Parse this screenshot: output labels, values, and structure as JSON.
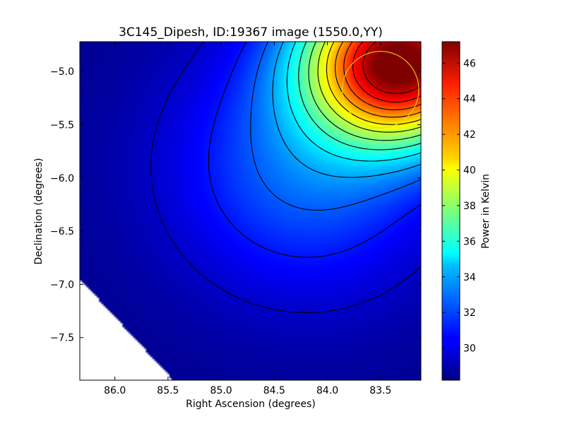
{
  "chart_data": {
    "type": "heatmap",
    "title": "3C145_Dipesh, ID:19367 image (1550.0,YY)",
    "xlabel": "Right Ascension (degrees)",
    "ylabel": "Declination (degrees)",
    "colorbar_label": "Power in Kelvin",
    "colormap": "jet",
    "xlim": [
      86.33,
      83.12
    ],
    "ylim": [
      -7.9,
      -4.72
    ],
    "x_ticks": [
      {
        "value": 86.0,
        "label": "86.0"
      },
      {
        "value": 85.5,
        "label": "85.5"
      },
      {
        "value": 85.0,
        "label": "85.0"
      },
      {
        "value": 84.5,
        "label": "84.5"
      },
      {
        "value": 84.0,
        "label": "84.0"
      },
      {
        "value": 83.5,
        "label": "83.5"
      }
    ],
    "y_ticks": [
      {
        "value": -5.0,
        "label": "−5.0"
      },
      {
        "value": -5.5,
        "label": "−5.5"
      },
      {
        "value": -6.0,
        "label": "−6.0"
      },
      {
        "value": -6.5,
        "label": "−6.5"
      },
      {
        "value": -7.0,
        "label": "−7.0"
      },
      {
        "value": -7.5,
        "label": "−7.5"
      }
    ],
    "color_range": [
      28.2,
      47.2
    ],
    "colorbar_ticks": [
      {
        "value": 30,
        "label": "30"
      },
      {
        "value": 32,
        "label": "32"
      },
      {
        "value": 34,
        "label": "34"
      },
      {
        "value": 36,
        "label": "36"
      },
      {
        "value": 38,
        "label": "38"
      },
      {
        "value": 40,
        "label": "40"
      },
      {
        "value": 42,
        "label": "42"
      },
      {
        "value": 44,
        "label": "44"
      },
      {
        "value": 46,
        "label": "46"
      }
    ],
    "peak": {
      "ra": 83.3,
      "dec": -4.9,
      "value": 47.0
    },
    "marker_circle": {
      "ra": 83.5,
      "dec": -5.17,
      "radius_deg": 0.36,
      "color": "#e8e800"
    },
    "no_data_region_color": "#ffffff",
    "contour_count": 13
  }
}
